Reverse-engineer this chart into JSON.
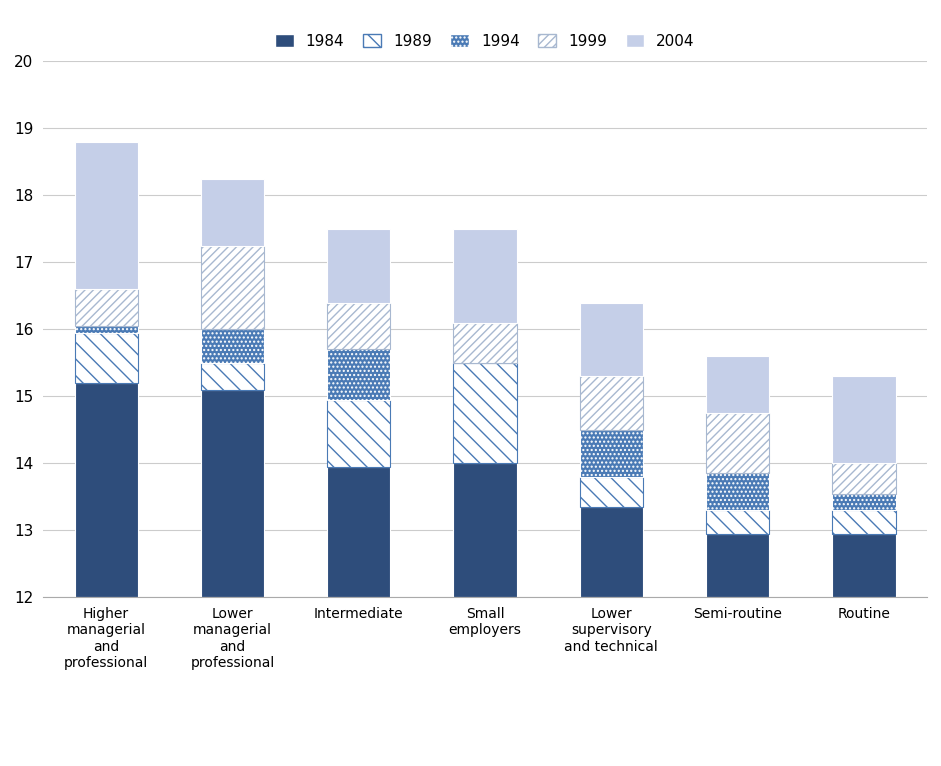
{
  "categories": [
    "Higher\nmanagerial\nand\nprofessional",
    "Lower\nmanagerial\nand\nprofessional",
    "Intermediate",
    "Small\nemployers",
    "Lower\nsupervisory\nand technical",
    "Semi-routine",
    "Routine"
  ],
  "ymin": 12,
  "ymax": 20,
  "yticks": [
    12,
    13,
    14,
    15,
    16,
    17,
    18,
    19,
    20
  ],
  "years": [
    "1984",
    "1989",
    "1994",
    "1999",
    "2004"
  ],
  "bar_tops": [
    [
      15.2,
      15.95,
      16.05,
      16.6,
      18.8
    ],
    [
      15.1,
      15.5,
      16.0,
      17.25,
      18.25
    ],
    [
      13.95,
      14.95,
      15.7,
      16.4,
      17.5
    ],
    [
      14.0,
      15.5,
      15.5,
      16.1,
      17.5
    ],
    [
      13.35,
      13.8,
      14.5,
      15.3,
      16.4
    ],
    [
      12.95,
      13.3,
      13.85,
      14.75,
      15.6
    ],
    [
      12.95,
      13.3,
      13.55,
      14.0,
      15.3
    ]
  ],
  "legend_labels": [
    "1984",
    "1989",
    "1994",
    "1999",
    "2004"
  ],
  "bar_width": 0.5,
  "figsize": [
    9.41,
    7.66
  ],
  "dpi": 100,
  "dark_blue": "#2e4d7b",
  "medium_blue": "#4a7ab5",
  "light_blue_grey": "#a8b8d0",
  "very_light_blue": "#c5cfe8"
}
